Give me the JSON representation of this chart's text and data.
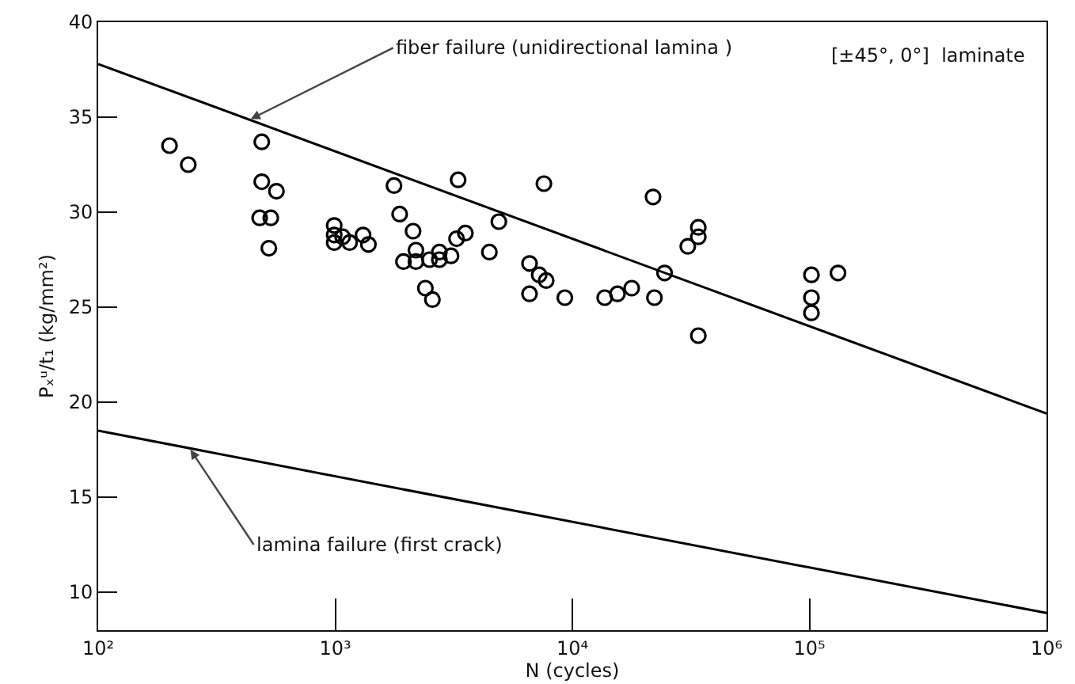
{
  "chart_data": {
    "type": "scatter",
    "xlabel": "N (cycles)",
    "ylabel": "Pₓᵘ/t₁ (kg/mm²)",
    "log": "x",
    "grid": false,
    "xlim": [
      100,
      1000000
    ],
    "xticks": [
      {
        "value": 100,
        "label": "10²"
      },
      {
        "value": 1000,
        "label": "10³"
      },
      {
        "value": 10000,
        "label": "10⁴"
      },
      {
        "value": 100000,
        "label": "10⁵"
      },
      {
        "value": 1000000,
        "label": "10⁶"
      }
    ],
    "ylim": [
      8,
      40
    ],
    "yticks": [
      10,
      15,
      20,
      25,
      30,
      35,
      40
    ],
    "annotations": [
      {
        "text": "fiber failure (unidirectional lamina )",
        "x": 440,
        "y": 34.9
      },
      {
        "text": "lamina failure (first crack)",
        "x": 245,
        "y": 17.5
      },
      "[±45°, 0°]  laminate"
    ],
    "series": [
      {
        "marker": "circle",
        "color": "#000000",
        "x": [
          200,
          240,
          490,
          490,
          565,
          480,
          535,
          525,
          990,
          990,
          990,
          1075,
          1150,
          1310,
          1380,
          1770,
          1870,
          2130,
          1940,
          2190,
          2190,
          2400,
          2570,
          2500,
          2750,
          2750,
          3080,
          3300,
          3250,
          3540,
          4470,
          4900,
          6600,
          6600,
          7590,
          7250,
          7760,
          9300,
          13700,
          15500,
          17800,
          21900,
          22200,
          24500,
          30700,
          34000,
          34000,
          34000,
          102000,
          102000,
          102000,
          132000
        ],
        "values": [
          33.5,
          32.5,
          33.7,
          31.6,
          31.1,
          29.7,
          29.7,
          28.1,
          29.3,
          28.8,
          28.4,
          28.7,
          28.4,
          28.8,
          28.3,
          31.4,
          29.9,
          29.0,
          27.4,
          28.0,
          27.4,
          26.0,
          25.4,
          27.5,
          27.9,
          27.5,
          27.7,
          31.7,
          28.6,
          28.9,
          27.9,
          29.5,
          27.3,
          25.7,
          31.5,
          26.7,
          26.4,
          25.5,
          25.5,
          25.7,
          26.0,
          30.8,
          25.5,
          26.8,
          28.2,
          29.2,
          28.7,
          23.5,
          26.7,
          25.5,
          24.7,
          26.8
        ]
      },
      {
        "type": "line",
        "color": "#000000",
        "line_style": "solid",
        "x": [
          100,
          1000000
        ],
        "values": [
          37.8,
          19.4
        ]
      },
      {
        "type": "line",
        "color": "#000000",
        "line_style": "solid",
        "x": [
          100,
          1000000
        ],
        "values": [
          18.5,
          8.9
        ]
      }
    ]
  }
}
